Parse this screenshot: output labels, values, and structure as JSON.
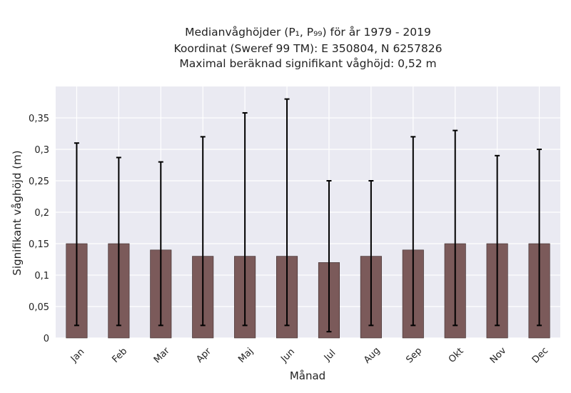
{
  "chart_data": {
    "type": "bar",
    "title_lines": [
      "Medianvåghöjder (P₁, P₉₉) för år 1979 - 2019",
      "Koordinat (Sweref 99 TM): E 350804, N 6257826",
      "Maximal beräknad signifikant våghöjd: 0,52 m"
    ],
    "xlabel": "Månad",
    "ylabel": "Signifikant våghöjd (m)",
    "categories": [
      "Jan",
      "Feb",
      "Mar",
      "Apr",
      "Maj",
      "Jun",
      "Jul",
      "Aug",
      "Sep",
      "Okt",
      "Nov",
      "Dec"
    ],
    "values": [
      0.15,
      0.15,
      0.14,
      0.13,
      0.13,
      0.13,
      0.12,
      0.13,
      0.14,
      0.15,
      0.15,
      0.15
    ],
    "err_low": [
      0.02,
      0.02,
      0.02,
      0.02,
      0.02,
      0.02,
      0.01,
      0.02,
      0.02,
      0.02,
      0.02,
      0.02
    ],
    "err_high": [
      0.31,
      0.287,
      0.28,
      0.32,
      0.358,
      0.38,
      0.25,
      0.25,
      0.32,
      0.33,
      0.29,
      0.3
    ],
    "ylim": [
      0,
      0.4
    ],
    "yticks": [
      0,
      0.05,
      0.1,
      0.15,
      0.2,
      0.25,
      0.3,
      0.35
    ],
    "ytick_labels": [
      "0",
      "0,05",
      "0,1",
      "0,15",
      "0,2",
      "0,25",
      "0,3",
      "0,35"
    ],
    "bar_color": "#7b5a5a",
    "bar_edge_color": "#3a2a2a",
    "error_bar_color": "#000000",
    "plot_background": "#eaeaf2",
    "grid": true,
    "grid_color": "#ffffff",
    "legend": false
  }
}
